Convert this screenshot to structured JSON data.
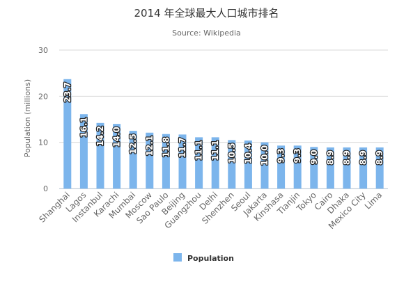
{
  "chart_data": {
    "type": "bar",
    "title": "2014 年全球最大人口城市排名",
    "subtitle": "Source: Wikipedia",
    "xlabel": "",
    "ylabel": "Population (millions)",
    "ylim": [
      0,
      30
    ],
    "yticks": [
      "0",
      "10",
      "20",
      "30"
    ],
    "grid": true,
    "legend_position": "bottom",
    "data_label_position": "inside-top-rotated",
    "x_label_rotation": "-45deg",
    "categories": [
      "Shanghai",
      "Lagos",
      "Instanbul",
      "Karachi",
      "Mumbai",
      "Moscow",
      "Sao Paulo",
      "Beijing",
      "Guangzhou",
      "Delhi",
      "Shenzhen",
      "Seoul",
      "Jakarta",
      "Kinshasa",
      "Tianjin",
      "Tokyo",
      "Cairo",
      "Dhaka",
      "Mexico City",
      "Lima"
    ],
    "series": [
      {
        "name": "Population",
        "color": "#7cb5ec",
        "values": [
          23.7,
          16.1,
          14.2,
          14.0,
          12.5,
          12.1,
          11.8,
          11.7,
          11.1,
          11.1,
          10.5,
          10.4,
          10.0,
          9.3,
          9.3,
          9.0,
          8.9,
          8.9,
          8.9,
          8.9
        ],
        "labels": [
          "23.7",
          "16.1",
          "14.2",
          "14.0",
          "12.5",
          "12.1",
          "11.8",
          "11.7",
          "11.1",
          "11.1",
          "10.5",
          "10.4",
          "10.0",
          "9.3",
          "9.3",
          "9.0",
          "8.9",
          "8.9",
          "8.9",
          "8.9"
        ]
      }
    ]
  }
}
